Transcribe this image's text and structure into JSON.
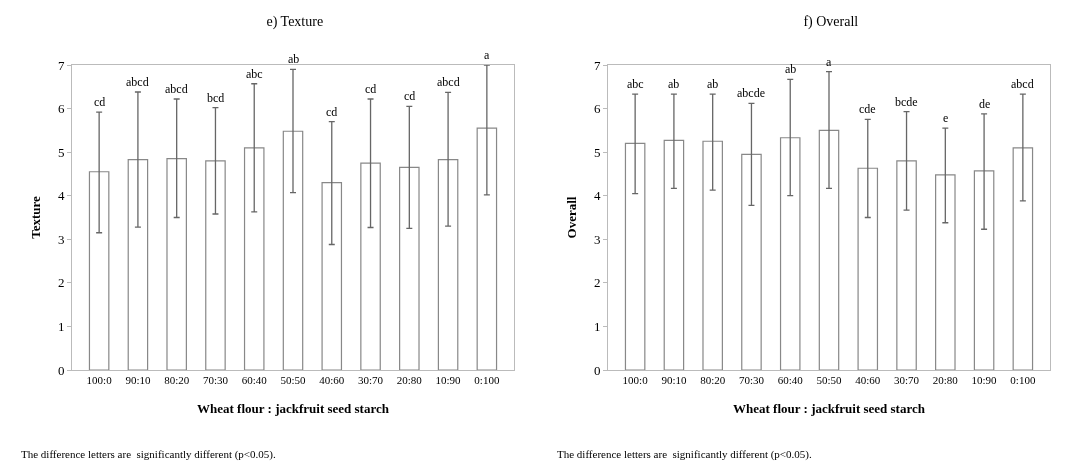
{
  "chart_data": [
    {
      "type": "bar",
      "title": "e) Texture",
      "xlabel": "Wheat flour : jackfruit seed starch",
      "ylabel": "Texture",
      "categories": [
        "100:0",
        "90:10",
        "80:20",
        "70:30",
        "60:40",
        "50:50",
        "40:60",
        "30:70",
        "20:80",
        "10:90",
        "0:100"
      ],
      "series": [
        {
          "color": "#ffffff",
          "values": [
            4.55,
            4.83,
            4.85,
            4.8,
            5.1,
            5.48,
            4.3,
            4.75,
            4.65,
            4.83,
            5.55
          ],
          "errors": [
            [
              3.15,
              5.92
            ],
            [
              3.28,
              6.38
            ],
            [
              3.5,
              6.22
            ],
            [
              3.58,
              6.02
            ],
            [
              3.63,
              6.57
            ],
            [
              4.07,
              6.9
            ],
            [
              2.88,
              5.7
            ],
            [
              3.27,
              6.22
            ],
            [
              3.25,
              6.05
            ],
            [
              3.3,
              6.37
            ],
            [
              4.02,
              7.0
            ]
          ]
        }
      ],
      "ylim": [
        0,
        7
      ],
      "yticks": [
        0,
        1,
        2,
        3,
        4,
        5,
        6,
        7
      ],
      "grid": false,
      "annotations": [
        {
          "text": "cd",
          "x": "100:0",
          "y": 5.92
        },
        {
          "text": "abcd",
          "x": "90:10",
          "y": 6.38
        },
        {
          "text": "abcd",
          "x": "80:20",
          "y": 6.22
        },
        {
          "text": "bcd",
          "x": "70:30",
          "y": 6.02
        },
        {
          "text": "abc",
          "x": "60:40",
          "y": 6.57
        },
        {
          "text": "ab",
          "x": "50:50",
          "y": 6.9
        },
        {
          "text": "cd",
          "x": "40:60",
          "y": 5.7
        },
        {
          "text": "cd",
          "x": "30:70",
          "y": 6.22
        },
        {
          "text": "cd",
          "x": "20:80",
          "y": 6.05
        },
        {
          "text": "abcd",
          "x": "10:90",
          "y": 6.37
        },
        {
          "text": "a",
          "x": "0:100",
          "y": 7.0
        },
        "The difference letters are  significantly different (p<0.05)."
      ]
    },
    {
      "type": "bar",
      "title": "f) Overall",
      "xlabel": "Wheat flour : jackfruit seed starch",
      "ylabel": "Overall",
      "categories": [
        "100:0",
        "90:10",
        "80:20",
        "70:30",
        "60:40",
        "50:50",
        "40:60",
        "30:70",
        "20:80",
        "10:90",
        "0:100"
      ],
      "series": [
        {
          "color": "#ffffff",
          "values": [
            5.2,
            5.27,
            5.25,
            4.95,
            5.33,
            5.5,
            4.63,
            4.8,
            4.48,
            4.57,
            5.1
          ],
          "errors": [
            [
              4.05,
              6.33
            ],
            [
              4.17,
              6.33
            ],
            [
              4.13,
              6.33
            ],
            [
              3.78,
              6.12
            ],
            [
              4.0,
              6.67
            ],
            [
              4.17,
              6.85
            ],
            [
              3.5,
              5.75
            ],
            [
              3.67,
              5.93
            ],
            [
              3.38,
              5.55
            ],
            [
              3.23,
              5.88
            ],
            [
              3.88,
              6.33
            ]
          ]
        }
      ],
      "ylim": [
        0,
        7
      ],
      "yticks": [
        0,
        1,
        2,
        3,
        4,
        5,
        6,
        7
      ],
      "grid": false,
      "annotations": [
        {
          "text": "abc",
          "x": "100:0",
          "y": 6.33
        },
        {
          "text": "ab",
          "x": "90:10",
          "y": 6.33
        },
        {
          "text": "ab",
          "x": "80:20",
          "y": 6.33
        },
        {
          "text": "abcde",
          "x": "70:30",
          "y": 6.12
        },
        {
          "text": "ab",
          "x": "60:40",
          "y": 6.67
        },
        {
          "text": "a",
          "x": "50:50",
          "y": 6.85
        },
        {
          "text": "cde",
          "x": "40:60",
          "y": 5.75
        },
        {
          "text": "bcde",
          "x": "30:70",
          "y": 5.93
        },
        {
          "text": "e",
          "x": "20:80",
          "y": 5.55
        },
        {
          "text": "de",
          "x": "10:90",
          "y": 5.88
        },
        {
          "text": "abcd",
          "x": "0:100",
          "y": 6.33
        },
        "The difference letters are  significantly different (p<0.05)."
      ]
    }
  ]
}
